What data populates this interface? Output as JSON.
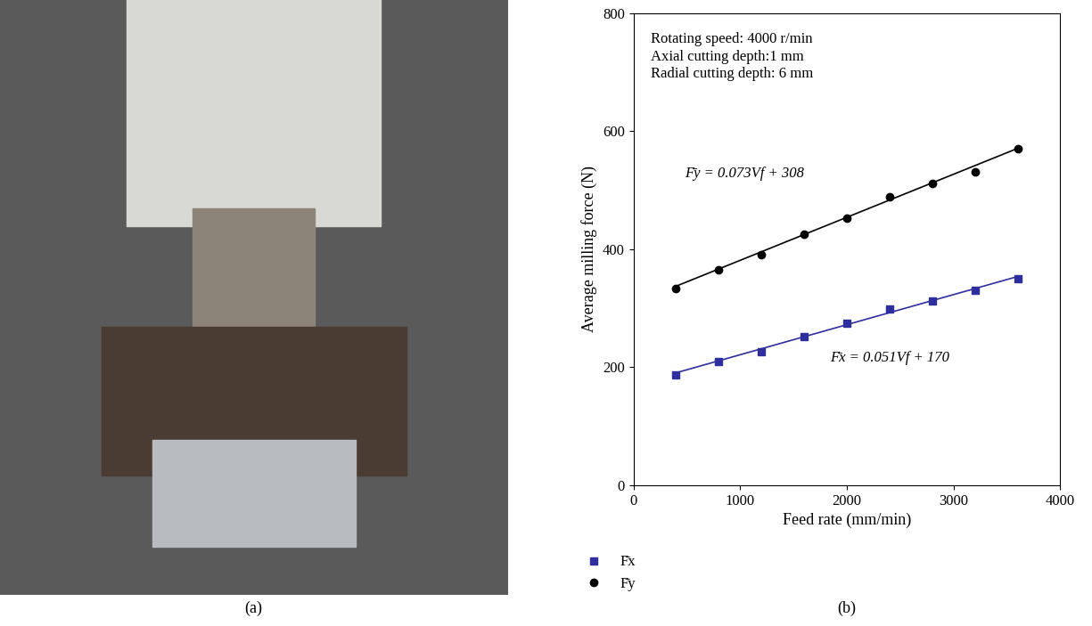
{
  "photo": {
    "caption": "(a)"
  },
  "chart_data": {
    "type": "scatter",
    "caption": "(b)",
    "x_label": "Feed rate (mm/min)",
    "y_label": "Average milling force (N)",
    "annotations": [
      "Rotating speed: 4000 r/min",
      "Axial cutting depth:1 mm",
      "Radial cutting depth: 6 mm"
    ],
    "x": [
      400,
      800,
      1200,
      1600,
      2000,
      2400,
      2800,
      3200,
      3600
    ],
    "series": [
      {
        "name": "F̄x",
        "color": "#2e2e9e",
        "marker": "square",
        "values": [
          187,
          210,
          226,
          252,
          275,
          298,
          312,
          330,
          350
        ],
        "fit": {
          "x": [
            400,
            3600
          ],
          "values": [
            190.4,
            353.6
          ],
          "equation": "F̄x = 0.051Vf + 170"
        }
      },
      {
        "name": "F̄y",
        "color": "#000000",
        "marker": "circle",
        "values": [
          333,
          365,
          390,
          425,
          453,
          488,
          512,
          531,
          570
        ],
        "fit": {
          "x": [
            400,
            3600
          ],
          "values": [
            337.2,
            570.8
          ],
          "equation": "F̄y = 0.073Vf + 308"
        }
      }
    ],
    "xlim": [
      0,
      4000
    ],
    "xticks": [
      0,
      1000,
      2000,
      3000,
      4000
    ],
    "ylim": [
      0,
      800
    ],
    "yticks": [
      0,
      200,
      400,
      600,
      800
    ],
    "grid": false,
    "legend": "below"
  }
}
